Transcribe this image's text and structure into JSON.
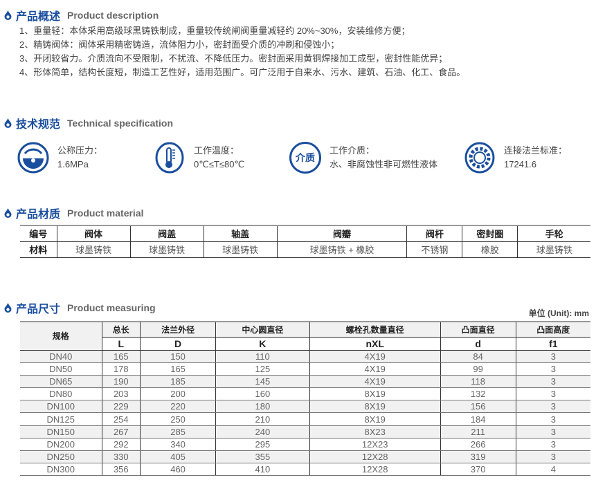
{
  "colors": {
    "accent": "#1a4e9e"
  },
  "description": {
    "title_zh": "产品概述",
    "title_en": "Product description",
    "items": [
      "1、重量轻：本体采用高级球黑铸铁制成，重量较传统闸阀重量减轻约 20%~30%，安装维修方便；",
      "2、精铸阀体：阀体采用精密铸造，流体阻力小，密封面受介质的冲刷和侵蚀小；",
      "3、开闭较省力。介质流向不受限制，不扰流、不降低压力。密封面采用黄铜焊接加工成型，密封性能优异；",
      "4、形体简单，结构长度短，制造工艺性好，适用范围广。可广泛用于自来水、污水、建筑、石油、化工、食品。"
    ]
  },
  "technical": {
    "title_zh": "技术规范",
    "title_en": "Technical specification",
    "specs": [
      {
        "icon": "pressure-gauge-icon",
        "label": "公称压力：",
        "value": "1.6MPa"
      },
      {
        "icon": "thermometer-icon",
        "label": "工作温度：",
        "value": "0℃≤T≤80℃"
      },
      {
        "icon": "medium-icon",
        "icon_text": "介质",
        "label": "工作介质：",
        "value": "水、非腐蚀性非可燃性液体"
      },
      {
        "icon": "flange-gear-icon",
        "label": "连接法兰标准：",
        "value": "17241.6"
      }
    ]
  },
  "material": {
    "title_zh": "产品材质",
    "title_en": "Product material",
    "headers": [
      "编号",
      "阀体",
      "阀盖",
      "轴盖",
      "阀瓣",
      "阀杆",
      "密封圈",
      "手轮"
    ],
    "row": [
      "材料",
      "球墨铸铁",
      "球墨铸铁",
      "球墨铸铁",
      "球墨铸铁 + 橡胶",
      "不锈钢",
      "橡胶",
      "球墨铸铁"
    ]
  },
  "measuring": {
    "title_zh": "产品尺寸",
    "title_en": "Product measuring",
    "unit": "单位 (Unit): mm",
    "headers": [
      "规格",
      "总长",
      "法兰外径",
      "中心圆直径",
      "螺栓孔数量直径",
      "凸面直径",
      "凸面高度"
    ],
    "symbols": [
      "L",
      "D",
      "K",
      "nXL",
      "d",
      "f1"
    ],
    "rows": [
      [
        "DN40",
        "165",
        "150",
        "110",
        "4X19",
        "84",
        "3"
      ],
      [
        "DN50",
        "178",
        "165",
        "125",
        "4X19",
        "99",
        "3"
      ],
      [
        "DN65",
        "190",
        "185",
        "145",
        "4X19",
        "118",
        "3"
      ],
      [
        "DN80",
        "203",
        "200",
        "160",
        "8X19",
        "132",
        "3"
      ],
      [
        "DN100",
        "229",
        "220",
        "180",
        "8X19",
        "156",
        "3"
      ],
      [
        "DN125",
        "254",
        "250",
        "210",
        "8X19",
        "184",
        "3"
      ],
      [
        "DN150",
        "267",
        "285",
        "240",
        "8X23",
        "211",
        "3"
      ],
      [
        "DN200",
        "292",
        "340",
        "295",
        "12X23",
        "266",
        "3"
      ],
      [
        "DN250",
        "330",
        "405",
        "355",
        "12X28",
        "319",
        "3"
      ],
      [
        "DN300",
        "356",
        "460",
        "410",
        "12X28",
        "370",
        "4"
      ]
    ]
  }
}
